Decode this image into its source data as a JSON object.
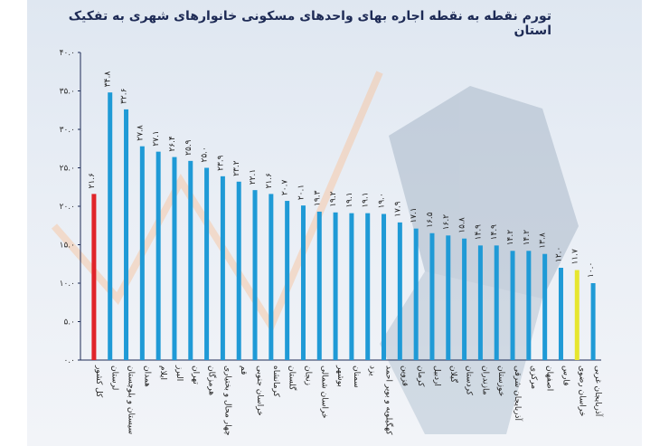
{
  "chart_data": {
    "type": "bar",
    "title": "تورم نقطه به نقطه اجاره بهای واحدهای مسکونی خانوارهای شهری به تفکیک استان",
    "xlabel": "",
    "ylabel": "",
    "ylim": [
      0,
      40
    ],
    "yticks": [
      0,
      5,
      10,
      15,
      20,
      25,
      30,
      35,
      40
    ],
    "ytick_labels": [
      "۰.۰",
      "۵.۰",
      "۱۰.۰",
      "۱۵.۰",
      "۲۰.۰",
      "۲۵.۰",
      "۳۰.۰",
      "۳۵.۰",
      "۴۰.۰"
    ],
    "grid": false,
    "categories": [
      "کل کشور",
      "لرستان",
      "سیستان و بلوچستان",
      "همدان",
      "ایلام",
      "البرز",
      "تهران",
      "هرمزگان",
      "چهار محال و بختیاری",
      "قم",
      "خراسان جنوبی",
      "کرمانشاه",
      "گلستان",
      "زنجان",
      "خراسان شمالی",
      "بوشهر",
      "سمنان",
      "یزد",
      "کهگیلویه و بویر احمد",
      "قزوین",
      "کرمان",
      "اردبیل",
      "گیلان",
      "کردستان",
      "مازندران",
      "خوزستان",
      "آذربایجان شرقی",
      "مرکزی",
      "اصفهان",
      "فارس",
      "خراسان رضوی",
      "آذربایجان غربی"
    ],
    "values": [
      21.6,
      34.8,
      32.6,
      27.8,
      27.1,
      26.4,
      25.9,
      25.0,
      23.9,
      23.2,
      22.1,
      21.6,
      20.7,
      20.1,
      19.3,
      19.2,
      19.1,
      19.1,
      19.0,
      17.9,
      17.1,
      16.5,
      16.2,
      15.8,
      14.9,
      14.9,
      14.2,
      14.2,
      13.8,
      12.0,
      11.7,
      10.0
    ],
    "value_labels": [
      "۲۱.۶",
      "۳۴.۸",
      "۳۲.۶",
      "۲۷.۸",
      "۲۷.۱",
      "۲۶.۴",
      "۲۵.۹",
      "۲۵.۰",
      "۲۳.۹",
      "۲۳.۲",
      "۲۲.۱",
      "۲۱.۶",
      "۲۰.۷",
      "۲۰.۱",
      "۱۹.۳",
      "۱۹.۲",
      "۱۹.۱",
      "۱۹.۱",
      "۱۹.۰",
      "۱۷.۹",
      "۱۷.۱",
      "۱۶.۵",
      "۱۶.۲",
      "۱۵.۸",
      "۱۴.۹",
      "۱۴.۹",
      "۱۴.۲",
      "۱۴.۲",
      "۱۳.۸",
      "۱۲.۰",
      "۱۱.۷",
      "۱۰.۰"
    ],
    "colors": {
      "default_bar": "#1f9ad6",
      "highlight_total": "#e0242a",
      "highlight_khorasan_razavi": "#e6e62e",
      "axis": "#1d2a55"
    }
  }
}
